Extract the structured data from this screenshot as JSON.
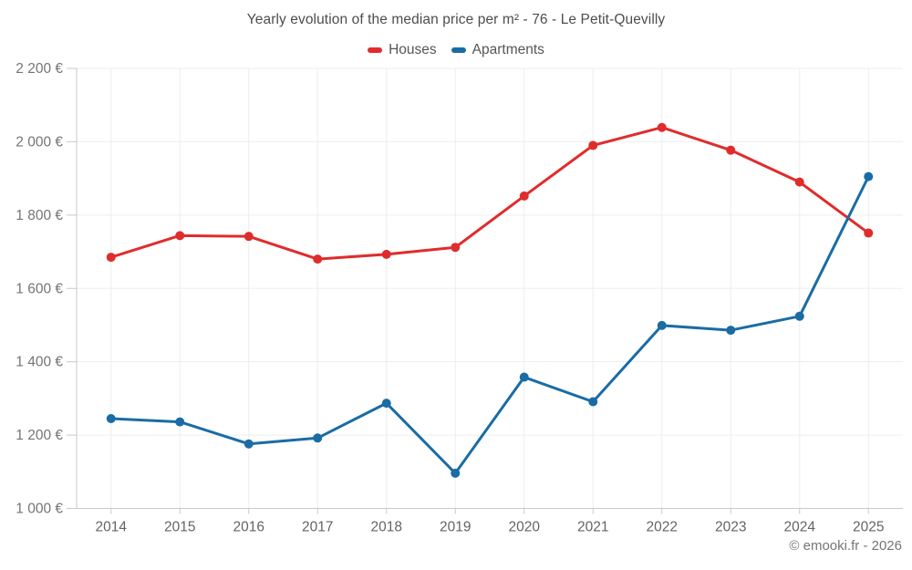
{
  "footer": {
    "credit": "© emooki.fr - 2026"
  },
  "chart_data": {
    "type": "line",
    "title": "Yearly evolution of the median price per m² - 76 - Le Petit-Quevilly",
    "categories": [
      "2014",
      "2015",
      "2016",
      "2017",
      "2018",
      "2019",
      "2020",
      "2021",
      "2022",
      "2023",
      "2024",
      "2025"
    ],
    "series": [
      {
        "name": "Houses",
        "color": "#e02c2c",
        "values": [
          1685,
          1744,
          1742,
          1680,
          1693,
          1712,
          1852,
          1990,
          2039,
          1977,
          1890,
          1751
        ]
      },
      {
        "name": "Apartments",
        "color": "#1a6ca4",
        "values": [
          1245,
          1236,
          1176,
          1192,
          1287,
          1096,
          1358,
          1291,
          1499,
          1486,
          1524,
          1905
        ]
      }
    ],
    "xlabel": "",
    "ylabel": "",
    "ylim": [
      1000,
      2200
    ],
    "y_tick_step": 200,
    "y_tick_labels": [
      "1 000 €",
      "1 200 €",
      "1 400 €",
      "1 600 €",
      "1 800 €",
      "2 000 €",
      "2 200 €"
    ],
    "grid": true,
    "legend_position": "top",
    "colors": {
      "grid_line": "#ededed",
      "axis_line": "#c9c9c9",
      "y_tick_label": "#757575",
      "x_tick_label": "#646464",
      "title": "#4d4d4d"
    }
  }
}
